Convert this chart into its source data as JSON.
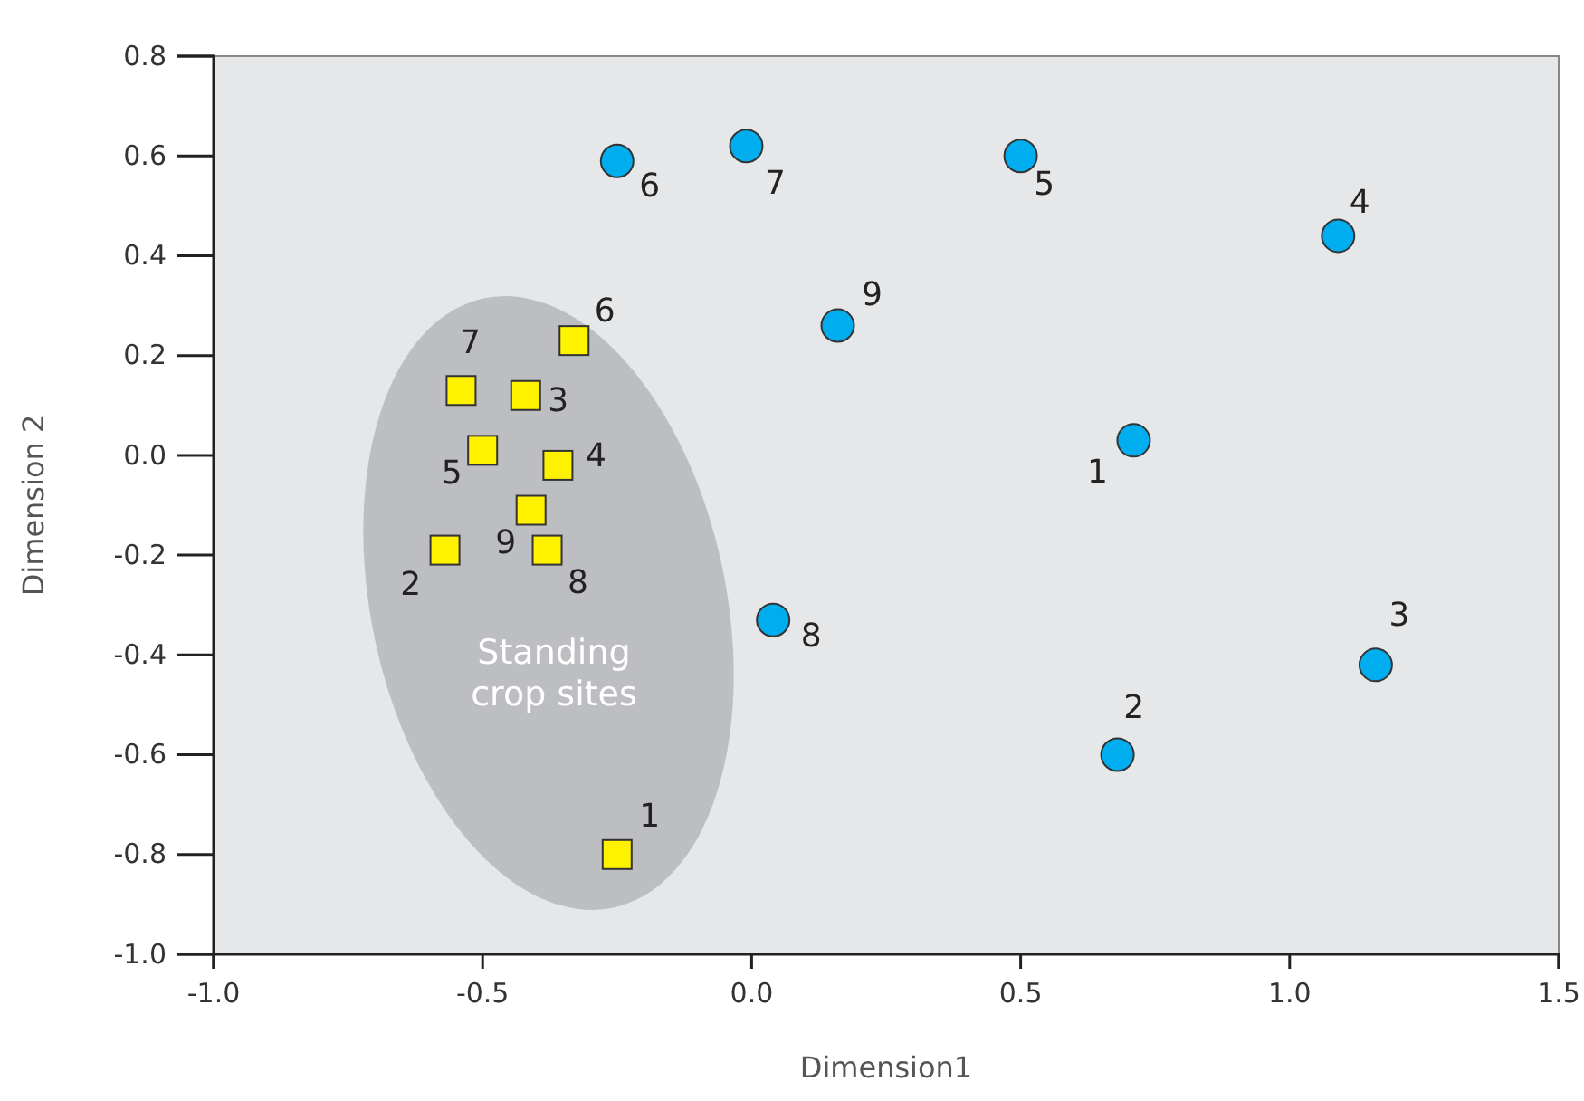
{
  "chart_data": {
    "type": "scatter",
    "xlabel": "Dimension1",
    "ylabel": "Dimension 2",
    "xlim": [
      -1,
      1.5
    ],
    "ylim": [
      -1,
      0.8
    ],
    "xticks": [
      {
        "value": -1,
        "label": "-1.0"
      },
      -0.5,
      {
        "value": 0,
        "label": "0.0"
      },
      0.5,
      {
        "value": 1,
        "label": "1.0"
      },
      1.5
    ],
    "yticks": [
      {
        "value": -1,
        "label": "-1.0"
      },
      -0.8,
      -0.6,
      -0.4,
      -0.2,
      {
        "value": 0,
        "label": "0.0"
      },
      0.2,
      0.4,
      0.6,
      0.8
    ],
    "grid": false,
    "series": [
      {
        "color": "#00aeef",
        "marker": "circle",
        "x": [
          0.71,
          0.68,
          1.16,
          1.09,
          0.5,
          -0.25,
          -0.01,
          0.04,
          0.16
        ],
        "values": [
          0.03,
          -0.6,
          -0.42,
          0.44,
          0.6,
          0.59,
          0.62,
          -0.33,
          0.26
        ]
      },
      {
        "color": "#fff200",
        "marker": "square",
        "x": [
          -0.25,
          -0.57,
          -0.42,
          -0.36,
          -0.5,
          -0.33,
          -0.54,
          -0.38,
          -0.41
        ],
        "values": [
          -0.8,
          -0.19,
          0.12,
          -0.02,
          0.01,
          0.23,
          0.13,
          -0.19,
          -0.11
        ]
      }
    ],
    "annotations": [
      {
        "text": "1",
        "x": 0.71,
        "y": 0.03
      },
      {
        "text": "2",
        "x": 0.68,
        "y": -0.6
      },
      {
        "text": "3",
        "x": 1.16,
        "y": -0.42
      },
      {
        "text": "4",
        "x": 1.09,
        "y": 0.44
      },
      {
        "text": "5",
        "x": 0.5,
        "y": 0.6
      },
      {
        "text": "6",
        "x": -0.25,
        "y": 0.59
      },
      {
        "text": "7",
        "x": -0.01,
        "y": 0.62
      },
      {
        "text": "8",
        "x": 0.04,
        "y": -0.33
      },
      {
        "text": "9",
        "x": 0.16,
        "y": 0.26
      },
      {
        "text": "1",
        "x": -0.25,
        "y": -0.8
      },
      {
        "text": "2",
        "x": -0.57,
        "y": -0.19
      },
      {
        "text": "3",
        "x": -0.42,
        "y": 0.12
      },
      {
        "text": "4",
        "x": -0.36,
        "y": -0.02
      },
      {
        "text": "5",
        "x": -0.5,
        "y": 0.01
      },
      {
        "text": "6",
        "x": -0.33,
        "y": 0.23
      },
      {
        "text": "7",
        "x": -0.54,
        "y": 0.13
      },
      {
        "text": "8",
        "x": -0.38,
        "y": -0.19
      },
      {
        "text": "9",
        "x": -0.41,
        "y": -0.11
      },
      "Standing crop sites"
    ]
  }
}
